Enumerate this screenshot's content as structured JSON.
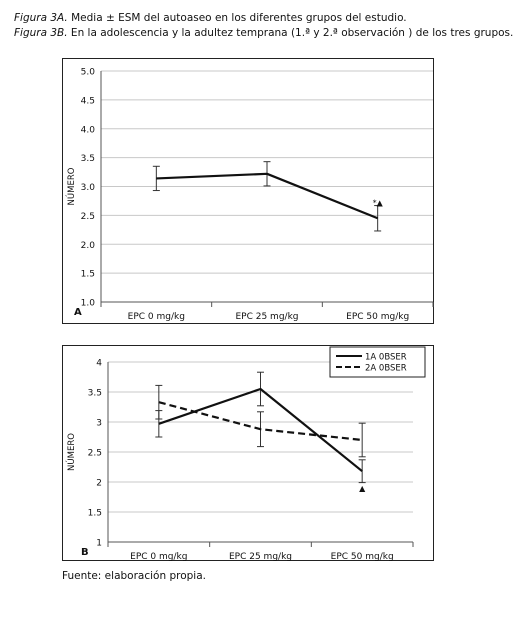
{
  "captions": {
    "fig3a_label": "Figura 3A.",
    "fig3a_text": " Media ± ESM del autoaseo en los diferentes grupos del estudio.",
    "fig3b_label": "Figura 3B.",
    "fig3b_text": " En la adolescencia y la adultez temprana (1.ª y 2.ª observación ) de los tres grupos."
  },
  "source": "Fuente: elaboración propia.",
  "chart_data": [
    {
      "type": "line",
      "panel_label": "A",
      "ylabel": "NÚMERO",
      "categories": [
        "EPC 0 mg/kg",
        "EPC 25 mg/kg",
        "EPC 50 mg/kg"
      ],
      "yticks": [
        "1.0",
        "1.5",
        "2.0",
        "2.5",
        "3.0",
        "3.5",
        "4.0",
        "4.5",
        "5.0"
      ],
      "ylim": [
        1.0,
        5.0
      ],
      "grid": true,
      "series": [
        {
          "values": [
            3.14,
            3.22,
            2.45
          ],
          "errors": [
            0.21,
            0.21,
            0.22
          ],
          "dash": "solid"
        }
      ],
      "annotations": [
        {
          "category": 2,
          "y": 2.72,
          "text": "*▲"
        }
      ]
    },
    {
      "type": "line",
      "panel_label": "B",
      "ylabel": "NÚMERO",
      "categories": [
        "EPC 0 mg/kg",
        "EPC 25 mg/kg",
        "EPC 50 mg/kg"
      ],
      "yticks": [
        "1",
        "1.5",
        "2",
        "2.5",
        "3",
        "3.5",
        "4"
      ],
      "ylim": [
        1,
        4
      ],
      "grid": true,
      "legend_position": "top-right",
      "series": [
        {
          "name": "1A 0BSER",
          "values": [
            2.97,
            3.55,
            2.18
          ],
          "errors": [
            0.22,
            0.28,
            0.19
          ],
          "dash": "solid"
        },
        {
          "name": "2A 0BSER",
          "values": [
            3.33,
            2.88,
            2.7
          ],
          "errors": [
            0.28,
            0.29,
            0.28
          ],
          "dash": "dashed"
        }
      ],
      "annotations": [
        {
          "category": 2,
          "y": 1.9,
          "text": "▲"
        }
      ]
    }
  ]
}
